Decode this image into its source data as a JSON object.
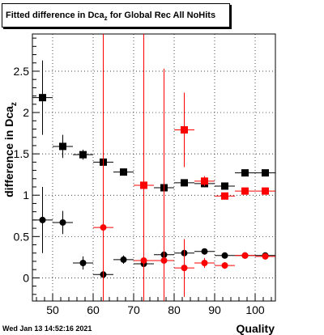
{
  "title": {
    "prefix": "Fitted difference in Dca",
    "subscript": "z",
    "suffix": " for Global Rec All NoHits"
  },
  "timestamp": "Wed Jan 13 14:52:16 2021",
  "colors": {
    "black_series": "#000000",
    "red_series": "#ff0000"
  },
  "chart_data": {
    "type": "scatter",
    "xlabel": "Quality",
    "ylabel": "difference in Dca",
    "ylabel_subscript": "z",
    "xlim": [
      45,
      105
    ],
    "ylim": [
      -0.28,
      2.95
    ],
    "xticks": [
      50,
      60,
      70,
      80,
      90,
      100
    ],
    "yticks": [
      0,
      0.5,
      1,
      1.5,
      2,
      2.5
    ],
    "grid": true,
    "series": [
      {
        "marker": "square",
        "color": "#000000",
        "points": [
          {
            "x": 47.5,
            "y": 2.18,
            "ex": 2.5,
            "ey": 0.45
          },
          {
            "x": 52.5,
            "y": 1.59,
            "ex": 2.5,
            "ey": 0.14
          },
          {
            "x": 57.5,
            "y": 1.49,
            "ex": 2.5,
            "ey": 0.06
          },
          {
            "x": 62.5,
            "y": 1.4,
            "ex": 2.5,
            "ey": 0.04
          },
          {
            "x": 67.5,
            "y": 1.28,
            "ex": 2.5,
            "ey": 0.03
          },
          {
            "x": 72.5,
            "y": 1.12,
            "ex": 2.5,
            "ey": 0.03
          },
          {
            "x": 77.5,
            "y": 1.09,
            "ex": 2.5,
            "ey": 0.03
          },
          {
            "x": 82.5,
            "y": 1.15,
            "ex": 2.5,
            "ey": 0.03
          },
          {
            "x": 87.5,
            "y": 1.14,
            "ex": 2.5,
            "ey": 0.03
          },
          {
            "x": 92.5,
            "y": 1.11,
            "ex": 2.5,
            "ey": 0.03
          },
          {
            "x": 97.5,
            "y": 1.27,
            "ex": 2.5,
            "ey": 0.03
          },
          {
            "x": 102.5,
            "y": 1.27,
            "ex": 2.5,
            "ey": 0.03
          }
        ]
      },
      {
        "marker": "circle",
        "color": "#000000",
        "points": [
          {
            "x": 47.5,
            "y": 0.7,
            "ex": 2.5,
            "ey": 0.4
          },
          {
            "x": 52.5,
            "y": 0.67,
            "ex": 2.5,
            "ey": 0.14
          },
          {
            "x": 57.5,
            "y": 0.18,
            "ex": 2.5,
            "ey": 0.08
          },
          {
            "x": 62.5,
            "y": 0.04,
            "ex": 2.5,
            "ey": 0.04
          },
          {
            "x": 67.5,
            "y": 0.22,
            "ex": 2.5,
            "ey": 0.05
          },
          {
            "x": 72.5,
            "y": 0.17,
            "ex": 2.5,
            "ey": 0.04
          },
          {
            "x": 77.5,
            "y": 0.28,
            "ex": 2.5,
            "ey": 0.03
          },
          {
            "x": 82.5,
            "y": 0.3,
            "ex": 2.5,
            "ey": 0.03
          },
          {
            "x": 87.5,
            "y": 0.32,
            "ex": 2.5,
            "ey": 0.03
          },
          {
            "x": 92.5,
            "y": 0.27,
            "ex": 2.5,
            "ey": 0.03
          },
          {
            "x": 97.5,
            "y": 0.27,
            "ex": 2.5,
            "ey": 0.02
          },
          {
            "x": 102.5,
            "y": 0.27,
            "ex": 2.5,
            "ey": 0.02
          }
        ]
      },
      {
        "marker": "square",
        "color": "#ff0000",
        "points": [
          {
            "x": 72.5,
            "y": 1.12,
            "ex": 2.5,
            "ey": 3.5
          },
          {
            "x": 82.5,
            "y": 1.79,
            "ex": 2.5,
            "ey": 0.45
          },
          {
            "x": 87.5,
            "y": 1.17,
            "ex": 2.5,
            "ey": 0.06
          },
          {
            "x": 92.5,
            "y": 0.99,
            "ex": 2.5,
            "ey": 0.04
          },
          {
            "x": 97.5,
            "y": 1.05,
            "ex": 2.5,
            "ey": 0.03
          },
          {
            "x": 102.5,
            "y": 1.05,
            "ex": 2.5,
            "ey": 0.03
          }
        ]
      },
      {
        "marker": "circle",
        "color": "#ff0000",
        "points": [
          {
            "x": 62.5,
            "y": 0.61,
            "ex": 2.5,
            "ey": 3.5
          },
          {
            "x": 72.5,
            "y": 0.21,
            "ex": 2.5,
            "ey": 3.5
          },
          {
            "x": 77.5,
            "y": 0.21,
            "ex": 2.5,
            "ey": 2.32
          },
          {
            "x": 82.5,
            "y": 0.12,
            "ex": 2.5,
            "ey": 0.35
          },
          {
            "x": 87.5,
            "y": 0.18,
            "ex": 2.5,
            "ey": 0.06
          },
          {
            "x": 92.5,
            "y": 0.15,
            "ex": 2.5,
            "ey": 0.04
          },
          {
            "x": 97.5,
            "y": 0.27,
            "ex": 2.5,
            "ey": 0.03
          },
          {
            "x": 102.5,
            "y": 0.26,
            "ex": 2.5,
            "ey": 0.03
          }
        ]
      }
    ]
  }
}
